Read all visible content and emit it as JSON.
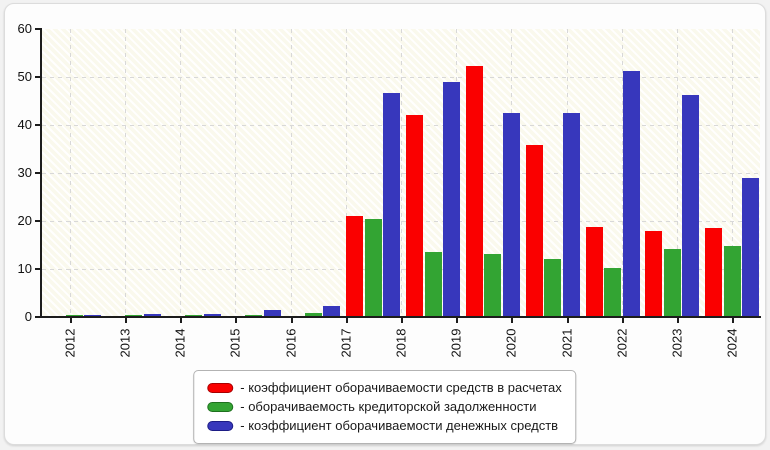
{
  "chart_data": {
    "type": "bar",
    "categories": [
      "2012",
      "2013",
      "2014",
      "2015",
      "2016",
      "2017",
      "2018",
      "2019",
      "2020",
      "2021",
      "2022",
      "2023"
    ],
    "axis_tick_labels": [
      "2012",
      "2013",
      "2014",
      "2015",
      "2016",
      "2017",
      "2018",
      "2019",
      "2020",
      "2021",
      "2022",
      "2023",
      "2024"
    ],
    "series": [
      {
        "key": "receivables-turnover",
        "name": "коэффициент оборачиваемости средств в расчетах",
        "legend_label": "- коэффициент оборачиваемости средств в расчетах",
        "color": "#fa0000",
        "border_color": "#a80000",
        "values": [
          0.3,
          0.25,
          0.25,
          0.2,
          0.2,
          21.0,
          42.0,
          52.3,
          35.8,
          18.7,
          17.9,
          18.5
        ]
      },
      {
        "key": "payables-turnover",
        "name": "оборачиваемость кредиторской задолженности",
        "legend_label": "- оборачиваемость кредиторской задолженности",
        "color": "#33a433",
        "border_color": "#1e701e",
        "values": [
          0.35,
          0.4,
          0.4,
          0.5,
          0.8,
          20.5,
          13.5,
          13.2,
          12.0,
          10.3,
          14.2,
          14.8
        ]
      },
      {
        "key": "cash-turnover",
        "name": "коэффициент оборачиваемости денежных средств",
        "legend_label": "- коэффициент оборачиваемости денежных средств",
        "color": "#3737bc",
        "border_color": "#1c1c85",
        "values": [
          0.4,
          0.6,
          0.7,
          1.4,
          2.2,
          46.7,
          49.0,
          42.5,
          42.5,
          51.2,
          46.2,
          29.0
        ]
      }
    ],
    "ylim": [
      0,
      60
    ],
    "y_ticks": [
      0,
      10,
      20,
      30,
      40,
      50,
      60
    ],
    "xlabel": "",
    "ylabel": "",
    "grid": "dashed",
    "legend_position": "bottom-center"
  }
}
